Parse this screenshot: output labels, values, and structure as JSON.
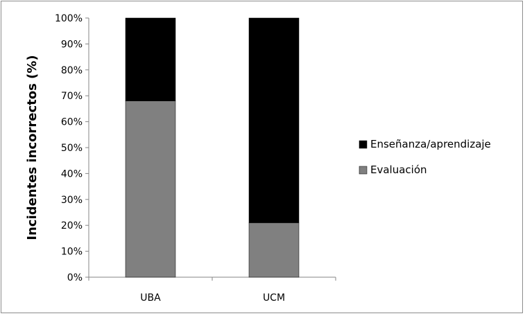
{
  "chart_data": {
    "type": "bar",
    "stacked": true,
    "title": "",
    "xlabel": "",
    "ylabel": "Incidentes incorrectos (%)",
    "categories": [
      "UBA",
      "UCM"
    ],
    "series": [
      {
        "name": "Evaluación",
        "values": [
          68,
          21
        ],
        "color": "#808080"
      },
      {
        "name": "Enseñanza/aprendizaje",
        "values": [
          32,
          79
        ],
        "color": "#000000"
      }
    ],
    "ylim": [
      0,
      100
    ],
    "yticks": [
      "0%",
      "10%",
      "20%",
      "30%",
      "40%",
      "50%",
      "60%",
      "70%",
      "80%",
      "90%",
      "100%"
    ],
    "grid": false,
    "legend": {
      "position": "right",
      "entries": [
        "Enseñanza/aprendizaje",
        "Evaluación"
      ]
    }
  }
}
